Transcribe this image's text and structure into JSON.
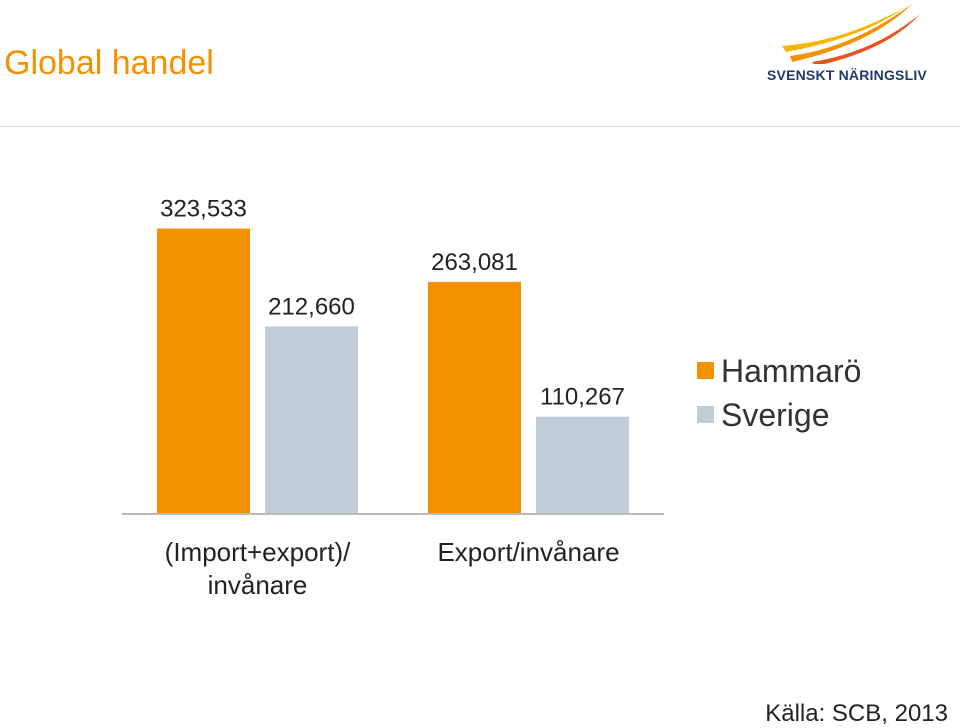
{
  "slide": {
    "title": "Global handel",
    "source": "Källa: SCB, 2013"
  },
  "logo": {
    "text": "SVENSKT NÄRINGSLIV",
    "colors": [
      "#f39200",
      "#e8531d",
      "#f7b500"
    ]
  },
  "colors": {
    "title": "#f39200",
    "hammaro": "#f39200",
    "sverige": "#bfcdd8",
    "axis": "#bbbbbb"
  },
  "chart_data": {
    "type": "bar",
    "title": "",
    "xlabel": "",
    "ylabel": "",
    "categories": [
      "(Import+export)/ invånare",
      "Export/invånare"
    ],
    "series": [
      {
        "name": "Hammarö",
        "values": [
          323533,
          263081
        ],
        "labels": [
          "323,533",
          "263,081"
        ]
      },
      {
        "name": "Sverige",
        "values": [
          212660,
          110267
        ],
        "labels": [
          "212,660",
          "110,267"
        ]
      }
    ],
    "ylim": [
      0,
      340000
    ],
    "grid": false,
    "legend_position": "right"
  }
}
